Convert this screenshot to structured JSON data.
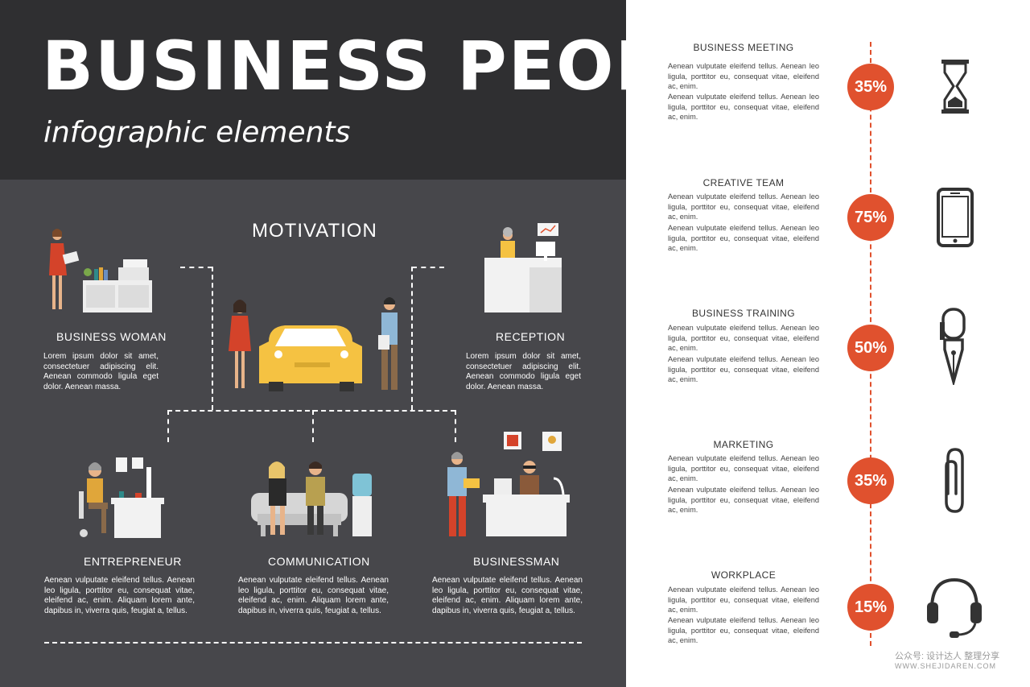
{
  "header": {
    "title": "BUSINESS PEOPLE",
    "subtitle": "infographic elements"
  },
  "center": {
    "title": "MOTIVATION"
  },
  "people": {
    "business_woman": {
      "label": "BUSINESS WOMAN",
      "text": "Lorem ipsum dolor sit amet, consectetuer adipiscing elit. Aenean commodo ligula eget dolor. Aenean massa."
    },
    "reception": {
      "label": "RECEPTION",
      "text": "Lorem ipsum dolor sit amet, consectetuer adipiscing elit. Aenean commodo ligula eget dolor. Aenean massa."
    },
    "entrepreneur": {
      "label": "ENTREPRENEUR",
      "text": "Aenean vulputate eleifend tellus. Aenean leo ligula, porttitor eu, consequat vitae, eleifend ac, enim. Aliquam lorem ante, dapibus in, viverra quis, feugiat a, tellus."
    },
    "communication": {
      "label": "COMMUNICATION",
      "text": "Aenean vulputate eleifend tellus. Aenean leo ligula, porttitor eu, consequat vitae, eleifend ac, enim. Aliquam lorem ante, dapibus in, viverra quis, feugiat a, tellus."
    },
    "businessman": {
      "label": "BUSINESSMAN",
      "text": "Aenean vulputate eleifend tellus. Aenean leo ligula, porttitor eu, consequat vitae, eleifend ac, enim. Aliquam lorem ante, dapibus in, viverra quis, feugiat a, tellus."
    }
  },
  "stats": [
    {
      "heading": "BUSINESS MEETING",
      "text1": "Aenean vulputate eleifend tellus. Aenean leo ligula, porttitor eu, consequat vitae, eleifend ac, enim.",
      "text2": "Aenean vulputate eleifend tellus. Aenean leo ligula, porttitor eu, consequat vitae, eleifend ac, enim.",
      "percent": "35%",
      "icon": "hourglass-icon"
    },
    {
      "heading": "CREATIVE TEAM",
      "text1": "Aenean vulputate eleifend tellus. Aenean leo ligula, porttitor eu, consequat vitae, eleifend ac, enim.",
      "text2": "Aenean vulputate eleifend tellus. Aenean leo ligula, porttitor eu, consequat vitae, eleifend ac, enim.",
      "percent": "75%",
      "icon": "smartphone-icon"
    },
    {
      "heading": "BUSINESS TRAINING",
      "text1": "Aenean vulputate eleifend tellus. Aenean leo ligula, porttitor eu, consequat vitae, eleifend ac, enim.",
      "text2": "Aenean vulputate eleifend tellus. Aenean leo ligula, porttitor eu, consequat vitae, eleifend ac, enim.",
      "percent": "50%",
      "icon": "fountain-pen-icon"
    },
    {
      "heading": "MARKETING",
      "text1": "Aenean vulputate eleifend tellus. Aenean leo ligula, porttitor eu, consequat vitae, eleifend ac, enim.",
      "text2": "Aenean vulputate eleifend tellus. Aenean leo ligula, porttitor eu, consequat vitae, eleifend ac, enim.",
      "percent": "35%",
      "icon": "paperclip-icon"
    },
    {
      "heading": "WORKPLACE",
      "text1": "Aenean vulputate eleifend tellus. Aenean leo ligula, porttitor eu, consequat vitae, eleifend ac, enim.",
      "text2": "Aenean vulputate eleifend tellus. Aenean leo ligula, porttitor eu, consequat vitae, eleifend ac, enim.",
      "percent": "15%",
      "icon": "headset-icon"
    }
  ],
  "watermark": {
    "text": "公众号: 设计达人 整理分享",
    "url": "WWW.SHEJIDAREN.COM"
  },
  "colors": {
    "header_bg": "#2f2f31",
    "panel_bg": "#47474b",
    "accent": "#e0512e",
    "car": "#f5c242"
  }
}
